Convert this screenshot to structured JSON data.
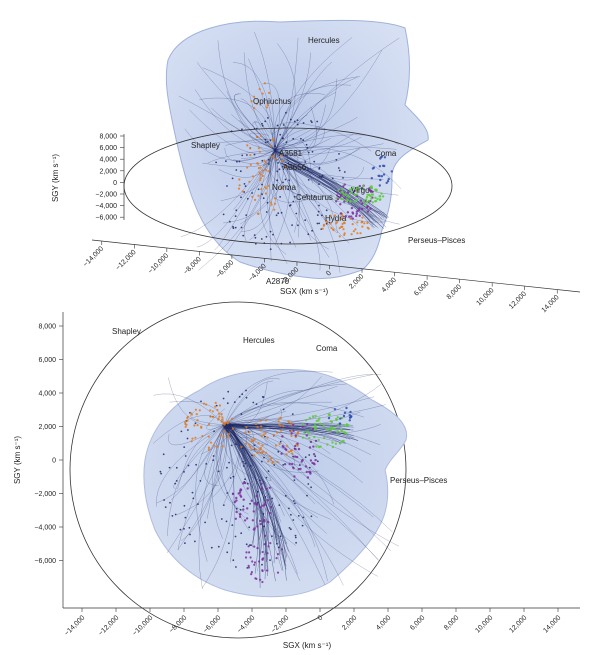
{
  "top_panel": {
    "labels": {
      "hercules": "Hercules",
      "ophiuchus": "Ophiuchus",
      "shapley": "Shapley",
      "a3581": "A3581",
      "a3656": "A3656",
      "coma": "Coma",
      "norma": "Norma",
      "centaurus": "Centaurus",
      "virgo": "Virgo",
      "hydra": "Hydra",
      "perseus_pisces": "Perseus–Pisces",
      "a2870": "A2870"
    },
    "sgy_axis": {
      "title": "SGY (km s⁻¹)",
      "ticks": [
        "8,000",
        "6,000",
        "4,000",
        "2,000",
        "0",
        "−2,000",
        "−4,000",
        "−6,000"
      ]
    },
    "sgx_axis": {
      "title": "SGX (km s⁻¹)",
      "ticks": [
        "−14,000",
        "−12,000",
        "−10,000",
        "−8,000",
        "−6,000",
        "−4,000",
        "−2,000",
        "0",
        "2,000",
        "4,000",
        "6,000",
        "8,000",
        "10,000",
        "12,000",
        "14,000"
      ]
    }
  },
  "bottom_panel": {
    "labels": {
      "shapley": "Shapley",
      "hercules": "Hercules",
      "coma": "Coma",
      "perseus_pisces": "Perseus–Pisces"
    },
    "sgy_axis": {
      "title": "SGY (km s⁻¹)",
      "ticks": [
        "8,000",
        "6,000",
        "4,000",
        "2,000",
        "0",
        "−2,000",
        "−4,000",
        "−6,000"
      ]
    },
    "sgx_axis": {
      "title": "SGX (km s⁻¹)",
      "ticks": [
        "−14,000",
        "−12,000",
        "−10,000",
        "−8,000",
        "−6,000",
        "−4,000",
        "−2,000",
        "0",
        "2,000",
        "4,000",
        "6,000",
        "8,000",
        "10,000",
        "12,000",
        "14,000"
      ]
    }
  },
  "colors": {
    "basin": "#c9d5ee",
    "basin_edge": "#9fb2dc",
    "flow_lines": "#1c2760",
    "orange_points": "#e07a1c",
    "purple_points": "#7a2f9c",
    "green_points": "#5cc93a",
    "blue_points": "#2f4fb0"
  }
}
